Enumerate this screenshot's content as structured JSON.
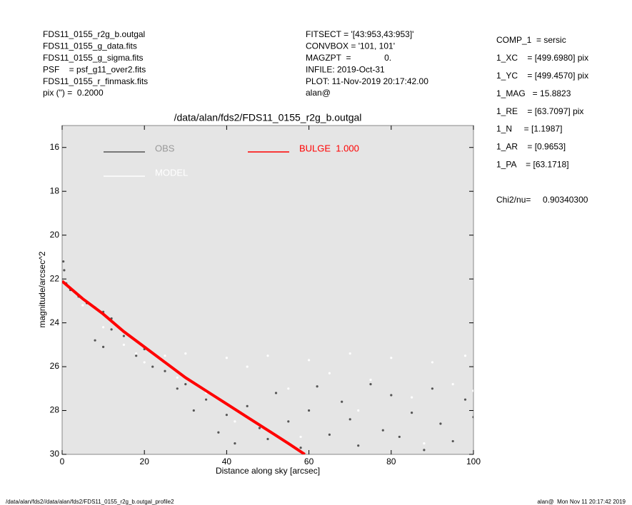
{
  "chart_data": {
    "type": "scatter",
    "title": "/data/alan/fds2/FDS11_0155_r2g_b.outgal",
    "x_label": "Distance along sky [arcsec]",
    "y_label": "magnitude/arcsec^2",
    "xlim": [
      0,
      100
    ],
    "ylim": [
      15,
      30
    ],
    "y_inverted": true,
    "xticks": [
      0,
      20,
      40,
      60,
      80,
      100
    ],
    "yticks": [
      16,
      18,
      20,
      22,
      24,
      26,
      28,
      30
    ],
    "header_left": [
      "FDS11_0155_r2g_b.outgal",
      "FDS11_0155_g_data.fits",
      "FDS11_0155_g_sigma.fits",
      "PSF    = psf_g11_over2.fits",
      "FDS11_0155_r_finmask.fits",
      "pix (\") =  0.2000"
    ],
    "header_middle": [
      "FITSECT = '[43:953,43:953]'",
      "CONVBOX = '101, 101'",
      "MAGZPT  =              0.",
      "INFILE: 2019-Oct-31",
      "PLOT: 11-Nov-2019 20:17:42.00",
      "alan@"
    ],
    "header_right": [
      "COMP_1  = sersic",
      "1_XC    = [499.6980] pix",
      "1_YC    = [499.4570] pix",
      "1_MAG   = 15.8823",
      "1_RE    = [63.7097] pix",
      "1_N     = [1.1987]",
      "1_AR    = [0.9653]",
      "1_PA    = [63.1718]"
    ],
    "chi2": "Chi2/nu=     0.90340300",
    "footer_left": "/data/alan/fds2//data/alan/fds2/FDS11_0155_r2g_b.outgal_profile2",
    "footer_right": "alan@  Mon Nov 11 20:17:42 2019",
    "series": [
      {
        "name": "OBS",
        "type": "scatter",
        "color": "#555555",
        "x": [
          0.3,
          0.5,
          1,
          2,
          4,
          6,
          8,
          10,
          12,
          8,
          10,
          12,
          15,
          18,
          20,
          22,
          25,
          28,
          30,
          32,
          35,
          38,
          40,
          42,
          45,
          48,
          50,
          52,
          55,
          58,
          60,
          62,
          65,
          68,
          70,
          72,
          75,
          78,
          80,
          82,
          85,
          88,
          90,
          92,
          95,
          98,
          100
        ],
        "values": [
          21.2,
          21.6,
          22.2,
          22.5,
          22.8,
          23.1,
          23.3,
          23.5,
          23.8,
          24.8,
          25.1,
          24.3,
          24.6,
          25.5,
          25.2,
          26.0,
          26.2,
          27.0,
          26.8,
          28.0,
          27.5,
          29.0,
          28.2,
          29.5,
          27.8,
          28.8,
          29.3,
          27.2,
          28.5,
          29.7,
          28.0,
          26.9,
          29.1,
          27.6,
          28.4,
          29.6,
          26.8,
          28.9,
          27.3,
          29.2,
          28.1,
          29.8,
          27.0,
          28.6,
          29.4,
          27.5,
          28.3
        ]
      },
      {
        "name": "MODEL",
        "type": "scatter",
        "color": "#ffffff",
        "x": [
          5,
          10,
          15,
          18,
          20,
          25,
          28,
          30,
          35,
          40,
          42,
          45,
          50,
          55,
          58,
          60,
          65,
          70,
          72,
          75,
          80,
          85,
          88,
          90,
          95,
          98,
          100
        ],
        "values": [
          23.2,
          24.2,
          25.0,
          25.4,
          25.8,
          25.5,
          26.5,
          25.4,
          27.2,
          25.6,
          28.5,
          26.0,
          25.5,
          27.0,
          29.2,
          25.7,
          26.3,
          25.4,
          28.0,
          26.6,
          25.6,
          27.4,
          29.5,
          25.8,
          26.8,
          25.5,
          27.1
        ]
      },
      {
        "name": "BULGE  1.000",
        "type": "line",
        "color": "#ff0000",
        "x": [
          0,
          5,
          10,
          15,
          20,
          25,
          30,
          35,
          40,
          45,
          50,
          55,
          59
        ],
        "values": [
          22.1,
          22.9,
          23.6,
          24.4,
          25.1,
          25.8,
          26.5,
          27.1,
          27.7,
          28.3,
          28.9,
          29.5,
          30.0
        ]
      }
    ]
  }
}
